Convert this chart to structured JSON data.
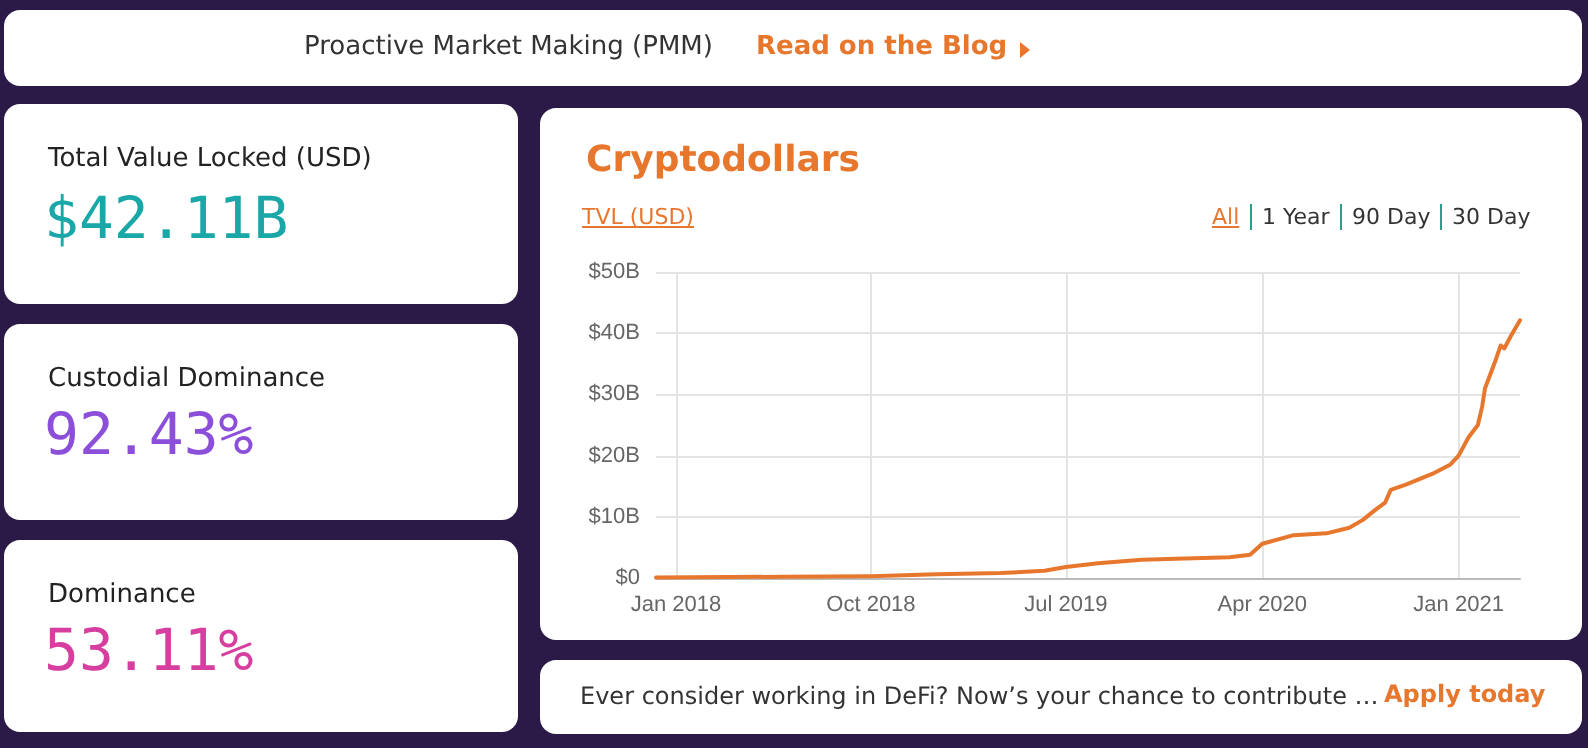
{
  "chart_data": [
    {
      "type": "other",
      "annotations": [
        "Proactive Market Making (PMM)",
        "Read on the Blog",
        "Total Value Locked (USD)",
        "$42.11B",
        "Custodial Dominance",
        "92.43%",
        "Dominance",
        "53.11%",
        "Ever consider working in DeFi? Now’s your chance to contribute …",
        "Apply today"
      ]
    },
    {
      "type": "line",
      "title": "Cryptodollars",
      "ylabel": "TVL (USD)",
      "annotations": [
        "All",
        "1 Year",
        "90 Day",
        "30 Day"
      ],
      "x": [
        "2017-12-04",
        "2018-06-01",
        "2018-10-01",
        "2019-01-01",
        "2019-04-01",
        "2019-06-01",
        "2019-07-01",
        "2019-08-15",
        "2019-10-15",
        "2019-12-15",
        "2020-02-15",
        "2020-03-15",
        "2020-04-01",
        "2020-05-15",
        "2020-06-30",
        "2020-08-01",
        "2020-08-20",
        "2020-09-05",
        "2020-09-20",
        "2020-09-28",
        "2020-10-20",
        "2020-11-25",
        "2020-12-20",
        "2021-01-01",
        "2021-01-15",
        "2021-01-28",
        "2021-02-03",
        "2021-02-07",
        "2021-02-20",
        "2021-03-01",
        "2021-03-06",
        "2021-03-15",
        "2021-03-28"
      ],
      "series": [
        {
          "color": "#e8772e",
          "values": [
            0.1,
            0.2,
            0.3,
            0.6,
            0.8,
            1.2,
            1.8,
            2.4,
            3.0,
            3.2,
            3.4,
            3.8,
            5.6,
            7.0,
            7.3,
            8.2,
            9.5,
            11.0,
            12.3,
            14.4,
            15.3,
            17.0,
            18.5,
            20.0,
            23.0,
            25.0,
            28.0,
            31.0,
            35.0,
            38.0,
            37.5,
            39.5,
            42.1
          ]
        }
      ],
      "xlim": [
        "2017-12-04",
        "2021-03-28"
      ],
      "xticks": [
        {
          "value": "2018-01-01",
          "label": "Jan 2018"
        },
        {
          "value": "2018-10-01",
          "label": "Oct 2018"
        },
        {
          "value": "2019-07-01",
          "label": "Jul 2019"
        },
        {
          "value": "2020-04-01",
          "label": "Apr 2020"
        },
        {
          "value": "2021-01-01",
          "label": "Jan 2021"
        }
      ],
      "ylim": [
        0,
        50
      ],
      "yticks": [
        {
          "value": 0,
          "label": "$0"
        },
        {
          "value": 10,
          "label": "$10B"
        },
        {
          "value": 20,
          "label": "$20B"
        },
        {
          "value": 30,
          "label": "$30B"
        },
        {
          "value": 40,
          "label": "$40B"
        },
        {
          "value": 50,
          "label": "$50B"
        }
      ],
      "grid": true,
      "marker": "none",
      "line_style": "solid"
    }
  ]
}
